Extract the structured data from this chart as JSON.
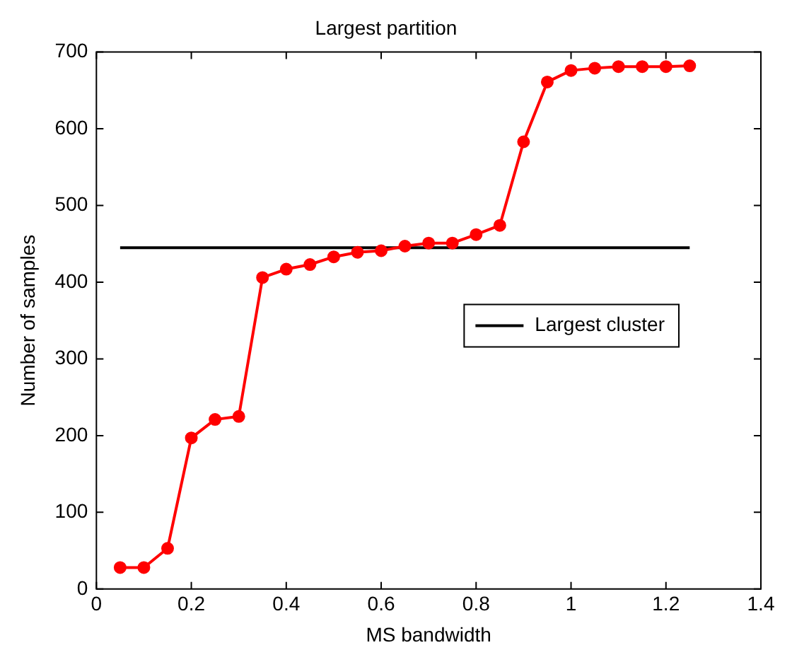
{
  "chart_data": {
    "type": "line",
    "title": "Largest partition",
    "xlabel": "MS bandwidth",
    "ylabel": "Number of samples",
    "x": [
      0.05,
      0.1,
      0.15,
      0.2,
      0.25,
      0.3,
      0.35,
      0.4,
      0.45,
      0.5,
      0.55,
      0.6,
      0.65,
      0.7,
      0.75,
      0.8,
      0.85,
      0.9,
      0.95,
      1.0,
      1.05,
      1.1,
      1.15,
      1.2,
      1.25
    ],
    "series": [
      {
        "color": "#ff0000",
        "marker": "circle",
        "values": [
          28,
          28,
          53,
          197,
          221,
          225,
          406,
          417,
          423,
          433,
          439,
          441,
          447,
          451,
          451,
          462,
          474,
          583,
          661,
          676,
          679,
          681,
          681,
          681,
          682
        ]
      },
      {
        "name": "Largest cluster",
        "color": "#000000",
        "marker": "none",
        "x": [
          0.05,
          1.25
        ],
        "values": [
          445,
          445
        ]
      }
    ],
    "xlim": [
      0,
      1.4
    ],
    "xticks": [
      0,
      0.2,
      0.4,
      0.6,
      0.8,
      1,
      1.2,
      1.4
    ],
    "ylim": [
      0,
      700
    ],
    "yticks": [
      0,
      100,
      200,
      300,
      400,
      500,
      600,
      700
    ],
    "grid": false,
    "legend": "right"
  }
}
